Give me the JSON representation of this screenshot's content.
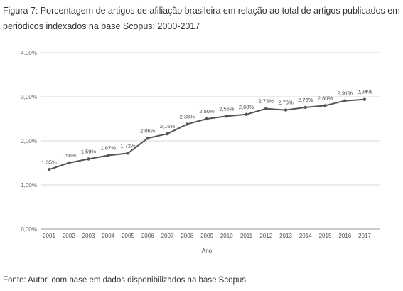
{
  "figure": {
    "title": "Figura 7: Porcentagem de artigos de afiliação brasileira em relação ao total de artigos publicados em periódicos indexados na base Scopus: 2000-2017",
    "source": "Fonte: Autor, com base em dados disponibilizados na base Scopus"
  },
  "chart_data": {
    "type": "line",
    "xlabel": "Ano",
    "ylabel": "",
    "categories": [
      "2001",
      "2002",
      "2003",
      "2004",
      "2005",
      "2006",
      "2007",
      "2008",
      "2009",
      "2010",
      "2011",
      "2012",
      "2013",
      "2014",
      "2015",
      "2016",
      "2017"
    ],
    "values": [
      1.35,
      1.5,
      1.59,
      1.67,
      1.72,
      2.06,
      2.16,
      2.38,
      2.5,
      2.56,
      2.6,
      2.73,
      2.7,
      2.76,
      2.8,
      2.91,
      2.94
    ],
    "data_labels": [
      "1,35%",
      "1,50%",
      "1,59%",
      "1,67%",
      "1,72%",
      "2,06%",
      "2,16%",
      "2,38%",
      "2,50%",
      "2,56%",
      "2,60%",
      "2,73%",
      "2,70%",
      "2,76%",
      "2,80%",
      "2,91%",
      "2,94%"
    ],
    "yticks": [
      "0,00%",
      "1,00%",
      "2,00%",
      "3,00%",
      "4,00%"
    ],
    "ylim": [
      0,
      4
    ],
    "grid": true,
    "legend": "none",
    "line_color": "#555555"
  }
}
